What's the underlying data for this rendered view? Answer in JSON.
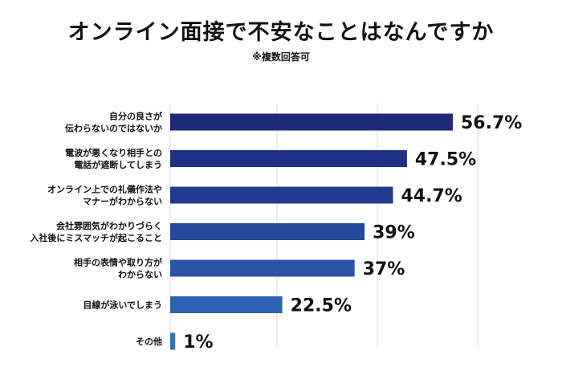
{
  "chart_data": {
    "type": "bar",
    "orientation": "horizontal",
    "title": "オンライン面接で不安なことはなんですか",
    "subtitle": "※複数回答可",
    "categories": [
      [
        "自分の良さが",
        "伝わらないのではないか"
      ],
      [
        "電波が悪くなり相手との",
        "電話が遮断してしまう"
      ],
      [
        "オンライン上での礼儀作法や",
        "マナーがわからない"
      ],
      [
        "会社雰囲気がわかりづらく",
        "入社後にミスマッチが起こること"
      ],
      [
        "相手の表情や取り方が",
        "わからない"
      ],
      [
        "目線が泳いでしまう"
      ],
      [
        "その他"
      ]
    ],
    "values": [
      56.7,
      47.5,
      44.7,
      39,
      37,
      22.5,
      1
    ],
    "value_labels": [
      "56.7%",
      "47.5%",
      "44.7%",
      "39%",
      "37%",
      "22.5%",
      "1%"
    ],
    "bar_colors": [
      "#1f2a78",
      "#1f2f85",
      "#213a92",
      "#25489c",
      "#2a55a6",
      "#2d62b0",
      "#3170ba"
    ],
    "grid": true,
    "xlim": [
      0,
      60
    ]
  }
}
